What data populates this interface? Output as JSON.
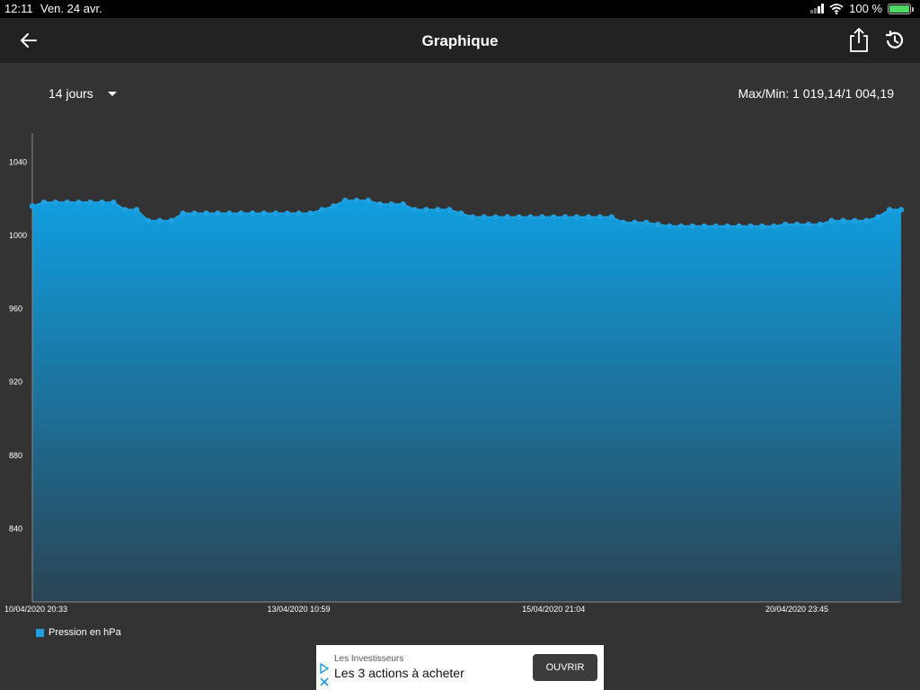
{
  "status_bar": {
    "time": "12:11",
    "date": "Ven. 24 avr.",
    "battery": "100 %"
  },
  "nav": {
    "title": "Graphique",
    "back_icon": "arrow-left-icon",
    "share_icon": "share-icon",
    "history_icon": "history-icon"
  },
  "controls": {
    "range": "14 jours",
    "maxmin": "Max/Min: 1 019,14/1 004,19"
  },
  "legend": {
    "label": "Pression en hPa",
    "color": "#1fa0e0"
  },
  "ad": {
    "advertiser": "Les Investisseurs",
    "headline": "Les 3 actions à acheter",
    "cta": "OUVRIR"
  },
  "chart_data": {
    "type": "area",
    "ylim": [
      800,
      1060
    ],
    "y_ticks": [
      840,
      880,
      920,
      960,
      1000,
      1040
    ],
    "x_tick_labels": [
      "10/04/2020 20:33",
      "13/04/2020 10:59",
      "15/04/2020 21:04",
      "20/04/2020 23:45"
    ],
    "x_tick_indices": [
      0,
      23,
      45,
      66
    ],
    "grid": false,
    "legend": "bottom-left",
    "colors": {
      "line": "#1fa0e0",
      "top": "#109ee0",
      "bottom": "#2a4454"
    },
    "series": [
      {
        "name": "Pression en hPa",
        "values": [
          1016,
          1018,
          1018,
          1018,
          1018,
          1018,
          1018,
          1018,
          1014,
          1014,
          1008,
          1008,
          1008,
          1012,
          1012,
          1012,
          1012,
          1012,
          1012,
          1012,
          1012,
          1012,
          1012,
          1012,
          1012,
          1014,
          1016,
          1019,
          1019,
          1019,
          1017,
          1017,
          1017,
          1014,
          1014,
          1014,
          1014,
          1012,
          1010,
          1010,
          1010,
          1010,
          1010,
          1010,
          1010,
          1010,
          1010,
          1010,
          1010,
          1010,
          1010,
          1007,
          1007,
          1007,
          1006,
          1005,
          1005,
          1005,
          1005,
          1005,
          1005,
          1005,
          1005,
          1005,
          1005,
          1006,
          1006,
          1006,
          1006,
          1008,
          1008,
          1008,
          1008,
          1010,
          1014,
          1014
        ]
      }
    ]
  }
}
